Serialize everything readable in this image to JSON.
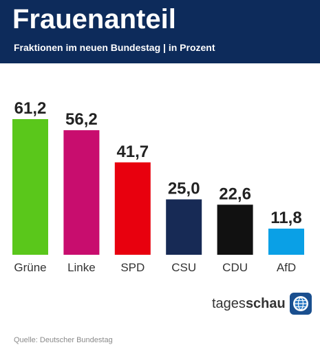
{
  "header": {
    "title": "Frauenanteil",
    "subtitle": "Fraktionen im neuen Bundestag | in Prozent"
  },
  "chart_data": {
    "type": "bar",
    "categories": [
      "Grüne",
      "Linke",
      "SPD",
      "CSU",
      "CDU",
      "AfD"
    ],
    "values": [
      61.2,
      56.2,
      41.7,
      25.0,
      22.6,
      11.8
    ],
    "value_labels": [
      "61,2",
      "56,2",
      "41,7",
      "25,0",
      "22,6",
      "11,8"
    ],
    "colors": [
      "#5ac71b",
      "#c80d6e",
      "#e8000e",
      "#172a55",
      "#111111",
      "#0aa0e6"
    ],
    "title": "Frauenanteil",
    "subtitle": "Fraktionen im neuen Bundestag | in Prozent",
    "xlabel": "",
    "ylabel": "",
    "ylim": [
      0,
      61.2
    ],
    "grid": false,
    "legend": "none"
  },
  "brand": {
    "name_light": "tages",
    "name_bold": "schau",
    "logo_icon": "tagesschau-logo-icon"
  },
  "footer": {
    "source": "Quelle: Deutscher Bundestag"
  }
}
